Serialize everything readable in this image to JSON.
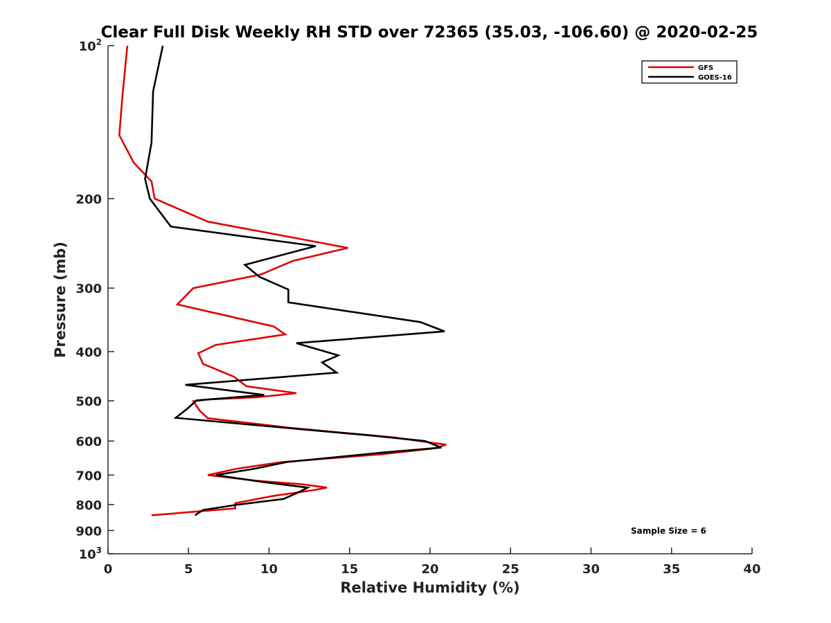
{
  "chart_data": {
    "type": "line",
    "title": "Clear Full Disk Weekly RH STD over 72365 (35.03, -106.60) @ 2020-02-25",
    "xlabel": "Relative Humidity (%)",
    "ylabel": "Pressure (mb)",
    "xlim": [
      0,
      40
    ],
    "ylim": [
      100,
      1000
    ],
    "y_scale": "log",
    "y_reversed": true,
    "x_ticks": [
      "0",
      "5",
      "10",
      "15",
      "20",
      "25",
      "30",
      "35",
      "40"
    ],
    "x_tick_values": [
      0,
      5,
      10,
      15,
      20,
      25,
      30,
      35,
      40
    ],
    "y_ticks": [
      {
        "value": 100,
        "base": "10",
        "sup": "2"
      },
      {
        "value": 200,
        "base": "200",
        "sup": ""
      },
      {
        "value": 300,
        "base": "300",
        "sup": ""
      },
      {
        "value": 400,
        "base": "400",
        "sup": ""
      },
      {
        "value": 500,
        "base": "500",
        "sup": ""
      },
      {
        "value": 600,
        "base": "600",
        "sup": ""
      },
      {
        "value": 700,
        "base": "700",
        "sup": ""
      },
      {
        "value": 800,
        "base": "800",
        "sup": ""
      },
      {
        "value": 900,
        "base": "900",
        "sup": ""
      },
      {
        "value": 1000,
        "base": "10",
        "sup": "3"
      }
    ],
    "grid": false,
    "legend": {
      "position": "top-right"
    },
    "annotation": "Sample Size = 6",
    "series": [
      {
        "name": "GFS",
        "color": "#e00000",
        "points": [
          [
            1.2,
            100
          ],
          [
            0.9,
            125
          ],
          [
            0.7,
            150
          ],
          [
            1.6,
            170
          ],
          [
            2.7,
            185
          ],
          [
            2.9,
            200
          ],
          [
            6.2,
            222
          ],
          [
            14.9,
            250
          ],
          [
            11.5,
            265
          ],
          [
            9.5,
            282
          ],
          [
            5.3,
            300
          ],
          [
            4.3,
            323
          ],
          [
            10.3,
            357
          ],
          [
            11.0,
            370
          ],
          [
            6.7,
            388
          ],
          [
            5.6,
            403
          ],
          [
            5.9,
            423
          ],
          [
            7.8,
            448
          ],
          [
            8.6,
            468
          ],
          [
            11.7,
            483
          ],
          [
            9.2,
            492
          ],
          [
            6.2,
            497
          ],
          [
            5.3,
            501
          ],
          [
            5.7,
            523
          ],
          [
            6.2,
            541
          ],
          [
            11.3,
            565
          ],
          [
            17.7,
            590
          ],
          [
            21.0,
            610
          ],
          [
            20.3,
            620
          ],
          [
            17.0,
            637
          ],
          [
            10.8,
            660
          ],
          [
            8.0,
            680
          ],
          [
            6.2,
            700
          ],
          [
            9.2,
            718
          ],
          [
            12.1,
            730
          ],
          [
            13.6,
            741
          ],
          [
            12.8,
            749
          ],
          [
            10.2,
            770
          ],
          [
            7.9,
            795
          ],
          [
            7.9,
            814
          ],
          [
            2.7,
            840
          ]
        ]
      },
      {
        "name": "GOES-16",
        "color": "#000000",
        "points": [
          [
            3.4,
            100
          ],
          [
            2.8,
            123
          ],
          [
            2.7,
            155
          ],
          [
            2.3,
            183
          ],
          [
            2.6,
            200
          ],
          [
            3.9,
            227
          ],
          [
            12.9,
            248
          ],
          [
            8.5,
            270
          ],
          [
            9.4,
            285
          ],
          [
            11.2,
            302
          ],
          [
            11.2,
            320
          ],
          [
            19.4,
            350
          ],
          [
            20.9,
            365
          ],
          [
            11.7,
            385
          ],
          [
            14.3,
            407
          ],
          [
            13.3,
            420
          ],
          [
            14.2,
            440
          ],
          [
            4.8,
            465
          ],
          [
            9.7,
            487
          ],
          [
            5.5,
            499
          ],
          [
            4.9,
            519
          ],
          [
            4.2,
            540
          ],
          [
            11.0,
            565
          ],
          [
            16.3,
            585
          ],
          [
            19.7,
            600
          ],
          [
            20.7,
            618
          ],
          [
            17.1,
            632
          ],
          [
            11.1,
            660
          ],
          [
            9.1,
            680
          ],
          [
            6.7,
            700
          ],
          [
            9.7,
            723
          ],
          [
            12.4,
            741
          ],
          [
            11.9,
            755
          ],
          [
            10.9,
            780
          ],
          [
            8.1,
            800
          ],
          [
            5.9,
            820
          ],
          [
            5.4,
            840
          ]
        ]
      }
    ]
  }
}
